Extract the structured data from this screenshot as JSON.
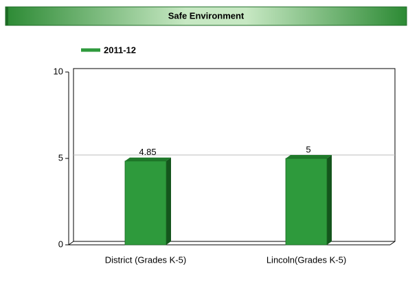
{
  "chart_data": {
    "type": "bar",
    "title": "Safe Environment",
    "categories": [
      "District (Grades K-5)",
      "Lincoln(Grades K-5)"
    ],
    "series": [
      {
        "name": "2011-12",
        "color": "#2e9a3c",
        "values": [
          4.85,
          5
        ]
      }
    ],
    "ylim": [
      0,
      10
    ],
    "yticks": [
      0,
      5,
      10
    ],
    "grid": true
  }
}
